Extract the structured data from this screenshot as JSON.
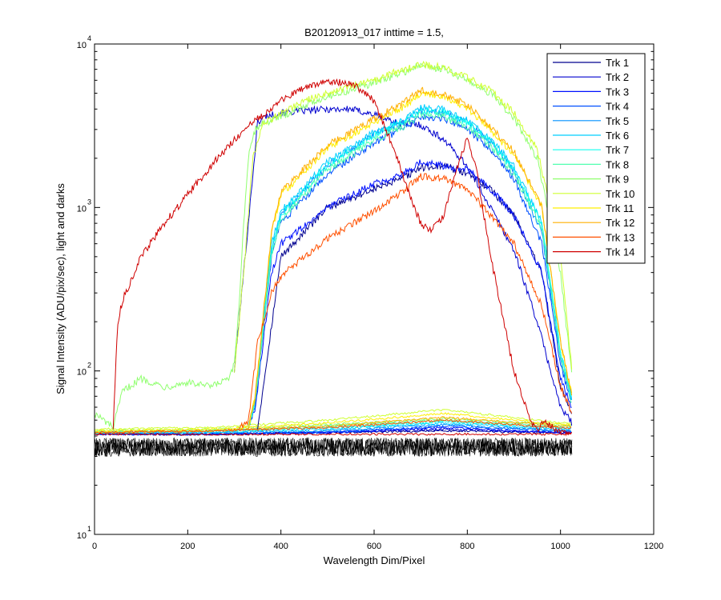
{
  "chart_data": {
    "type": "line",
    "title": "B20120913_017 inttime = 1.5,",
    "xlabel": "Wavelength Dim/Pixel",
    "ylabel": "Signal Intensity (ADU/pix/sec), light and darks",
    "xlim": [
      0,
      1200
    ],
    "ylim": [
      10,
      10000
    ],
    "yscale": "log",
    "grid": false,
    "legend_position": "top-right",
    "x_ticks": [
      {
        "value": 0,
        "label": "0"
      },
      {
        "value": 200,
        "label": "200"
      },
      {
        "value": 400,
        "label": "400"
      },
      {
        "value": 600,
        "label": "600"
      },
      {
        "value": 800,
        "label": "800"
      },
      {
        "value": 1000,
        "label": "1000"
      },
      {
        "value": 1200,
        "label": "1200"
      }
    ],
    "y_ticks": [
      {
        "value": 10,
        "base": "10",
        "exp": "1"
      },
      {
        "value": 100,
        "base": "10",
        "exp": "2"
      },
      {
        "value": 1000,
        "base": "10",
        "exp": "3"
      },
      {
        "value": 10000,
        "base": "10",
        "exp": "4"
      }
    ],
    "dark_band": {
      "color": "#000000",
      "x_start": 0,
      "x_end": 1025,
      "y_low": 30,
      "y_high": 39
    },
    "series": [
      {
        "name": "Trk 1",
        "color": "#00008F",
        "light": {
          "x": [
            350,
            400,
            500,
            600,
            660,
            700,
            750,
            800,
            850,
            900,
            960,
            1000,
            1025
          ],
          "y": [
            45,
            500,
            1000,
            1300,
            1500,
            1750,
            1800,
            1600,
            1300,
            900,
            400,
            80,
            55
          ]
        },
        "dark": {
          "x": [
            0,
            250,
            500,
            750,
            1000,
            1025
          ],
          "y": [
            41,
            41,
            42,
            43,
            42,
            42
          ]
        }
      },
      {
        "name": "Trk 2",
        "color": "#0000CF",
        "light": {
          "x": [
            300,
            310,
            330,
            350,
            365,
            400,
            450,
            500,
            550,
            600,
            650,
            700,
            750,
            800,
            850,
            900,
            950,
            1000,
            1025
          ],
          "y": [
            100,
            200,
            800,
            3300,
            3600,
            3800,
            3900,
            4000,
            4000,
            3700,
            3300,
            3200,
            2600,
            1800,
            1000,
            550,
            200,
            60,
            48
          ]
        },
        "dark": {
          "x": [
            0,
            250,
            500,
            750,
            1000,
            1025
          ],
          "y": [
            41,
            41,
            42,
            44,
            42,
            42
          ]
        }
      },
      {
        "name": "Trk 3",
        "color": "#0010FF",
        "light": {
          "x": [
            330,
            345,
            380,
            400,
            500,
            600,
            660,
            700,
            750,
            800,
            850,
            900,
            960,
            1000,
            1025
          ],
          "y": [
            45,
            60,
            400,
            600,
            1000,
            1400,
            1600,
            1900,
            1800,
            1700,
            1300,
            900,
            400,
            90,
            60
          ]
        },
        "dark": {
          "x": [
            0,
            250,
            500,
            750,
            1000,
            1025
          ],
          "y": [
            41,
            41,
            42,
            45,
            42,
            42
          ]
        }
      },
      {
        "name": "Trk 4",
        "color": "#0050FF",
        "light": {
          "x": [
            330,
            345,
            380,
            400,
            500,
            600,
            660,
            700,
            750,
            800,
            850,
            900,
            960,
            1000,
            1025
          ],
          "y": [
            45,
            62,
            500,
            800,
            1600,
            2500,
            3000,
            3600,
            3500,
            3000,
            2300,
            1500,
            600,
            110,
            62
          ]
        },
        "dark": {
          "x": [
            0,
            250,
            500,
            750,
            1000,
            1025
          ],
          "y": [
            41,
            41,
            42,
            46,
            43,
            43
          ]
        }
      },
      {
        "name": "Trk 5",
        "color": "#0090FF",
        "light": {
          "x": [
            330,
            345,
            380,
            400,
            500,
            600,
            660,
            700,
            750,
            800,
            850,
            900,
            960,
            1000,
            1025
          ],
          "y": [
            45,
            65,
            560,
            900,
            1800,
            2800,
            3300,
            3900,
            3800,
            3300,
            2500,
            1700,
            700,
            120,
            64
          ]
        },
        "dark": {
          "x": [
            0,
            250,
            500,
            750,
            1000,
            1025
          ],
          "y": [
            42,
            42,
            43,
            47,
            43,
            43
          ]
        }
      },
      {
        "name": "Trk 6",
        "color": "#00CFFF",
        "light": {
          "x": [
            330,
            345,
            380,
            400,
            500,
            600,
            660,
            700,
            750,
            800,
            850,
            900,
            960,
            1000,
            1025
          ],
          "y": [
            45,
            66,
            600,
            950,
            1900,
            2900,
            3400,
            4100,
            4000,
            3400,
            2600,
            1800,
            800,
            130,
            66
          ]
        },
        "dark": {
          "x": [
            0,
            250,
            500,
            750,
            1000,
            1025
          ],
          "y": [
            42,
            42,
            44,
            48,
            44,
            44
          ]
        }
      },
      {
        "name": "Trk 7",
        "color": "#10FFEF",
        "light": {
          "x": [
            330,
            345,
            380,
            400,
            500,
            600,
            660,
            700,
            750,
            800,
            850,
            900,
            960,
            1000,
            1025
          ],
          "y": [
            45,
            66,
            550,
            900,
            1800,
            2800,
            3300,
            3900,
            3800,
            3300,
            2500,
            1700,
            800,
            130,
            65
          ]
        },
        "dark": {
          "x": [
            0,
            250,
            500,
            750,
            1000,
            1025
          ],
          "y": [
            42,
            43,
            45,
            49,
            45,
            45
          ]
        }
      },
      {
        "name": "Trk 8",
        "color": "#50FFAF",
        "light": {
          "x": [
            330,
            345,
            380,
            400,
            500,
            600,
            660,
            700,
            750,
            800,
            850,
            900,
            960,
            1000,
            1025
          ],
          "y": [
            45,
            64,
            520,
            850,
            1700,
            2600,
            3100,
            3700,
            3600,
            3100,
            2400,
            1600,
            750,
            120,
            62
          ]
        },
        "dark": {
          "x": [
            0,
            250,
            500,
            750,
            1000,
            1025
          ],
          "y": [
            42,
            43,
            46,
            50,
            46,
            46
          ]
        }
      },
      {
        "name": "Trk 9",
        "color": "#90FF6F",
        "light": {
          "x": [
            0,
            40,
            60,
            100,
            150,
            200,
            250,
            290,
            300,
            310,
            320,
            330,
            345,
            360,
            380,
            400,
            450,
            500,
            550,
            600,
            650,
            700,
            750,
            800,
            850,
            900,
            950,
            1000,
            1025
          ],
          "y": [
            55,
            45,
            75,
            90,
            80,
            85,
            80,
            90,
            110,
            250,
            800,
            2000,
            3000,
            3300,
            3400,
            3600,
            4200,
            4800,
            5200,
            5800,
            6500,
            7400,
            7000,
            6000,
            5000,
            3500,
            2000,
            400,
            90
          ]
        },
        "dark": {
          "x": [
            0,
            250,
            500,
            750,
            1000,
            1025
          ],
          "y": [
            43,
            44,
            47,
            51,
            47,
            47
          ]
        }
      },
      {
        "name": "Trk 10",
        "color": "#CFFF30",
        "light": {
          "x": [
            300,
            320,
            340,
            360,
            400,
            450,
            500,
            550,
            600,
            650,
            700,
            750,
            800,
            850,
            900,
            950,
            1000,
            1025
          ],
          "y": [
            100,
            400,
            2000,
            3200,
            3800,
            4500,
            5000,
            5500,
            6000,
            6800,
            7500,
            7200,
            6200,
            5200,
            3800,
            2300,
            500,
            100
          ]
        },
        "dark": {
          "x": [
            0,
            250,
            500,
            750,
            1000,
            1025
          ],
          "y": [
            44,
            45,
            50,
            58,
            48,
            48
          ]
        }
      },
      {
        "name": "Trk 11",
        "color": "#FFEF00",
        "light": {
          "x": [
            330,
            345,
            380,
            400,
            500,
            600,
            660,
            700,
            750,
            800,
            850,
            900,
            960,
            1000,
            1025
          ],
          "y": [
            45,
            70,
            700,
            1200,
            2300,
            3300,
            4100,
            5000,
            4800,
            4000,
            3000,
            2100,
            1000,
            150,
            70
          ]
        },
        "dark": {
          "x": [
            0,
            250,
            500,
            750,
            1000,
            1025
          ],
          "y": [
            43,
            44,
            48,
            55,
            47,
            47
          ]
        }
      },
      {
        "name": "Trk 12",
        "color": "#FFAF00",
        "light": {
          "x": [
            330,
            345,
            380,
            400,
            500,
            600,
            660,
            700,
            750,
            800,
            850,
            900,
            960,
            1000,
            1025
          ],
          "y": [
            45,
            70,
            720,
            1250,
            2400,
            3500,
            4300,
            5200,
            5000,
            4200,
            3100,
            2200,
            1000,
            150,
            70
          ]
        },
        "dark": {
          "x": [
            0,
            250,
            500,
            750,
            1000,
            1025
          ],
          "y": [
            42,
            43,
            46,
            52,
            46,
            46
          ]
        }
      },
      {
        "name": "Trk 13",
        "color": "#FF5000",
        "light": {
          "x": [
            310,
            330,
            350,
            380,
            400,
            500,
            600,
            660,
            700,
            750,
            800,
            850,
            900,
            960,
            1000,
            1025
          ],
          "y": [
            45,
            50,
            150,
            300,
            380,
            650,
            950,
            1250,
            1550,
            1500,
            1300,
            900,
            600,
            250,
            80,
            55
          ]
        },
        "dark": {
          "x": [
            0,
            250,
            500,
            750,
            1000,
            1025
          ],
          "y": [
            42,
            43,
            45,
            50,
            45,
            45
          ]
        }
      },
      {
        "name": "Trk 14",
        "color": "#CF0000",
        "light": {
          "x": [
            40,
            45,
            50,
            60,
            100,
            150,
            200,
            250,
            300,
            350,
            400,
            450,
            500,
            550,
            600,
            650,
            680,
            700,
            720,
            750,
            780,
            800,
            820,
            850,
            900,
            930,
            950,
            960,
            1000,
            1025
          ],
          "y": [
            45,
            100,
            200,
            270,
            500,
            800,
            1200,
            1800,
            2600,
            3500,
            4500,
            5400,
            5900,
            5800,
            4500,
            2000,
            1100,
            800,
            720,
            900,
            1800,
            2700,
            1700,
            500,
            100,
            55,
            42,
            50,
            42,
            41
          ]
        },
        "dark": {
          "x": [
            0,
            250,
            500,
            750,
            1000,
            1025
          ],
          "y": [
            41,
            41,
            41,
            41,
            41,
            41
          ]
        }
      }
    ]
  }
}
